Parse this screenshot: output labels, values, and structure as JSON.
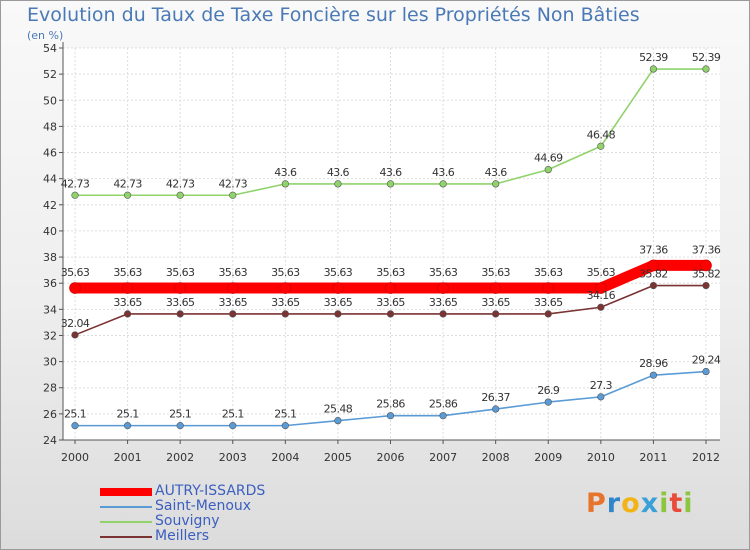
{
  "header": {
    "title": "Evolution du Taux de Taxe Foncière sur les Propriétés Non Bâties",
    "unit": "(en %)"
  },
  "logo": {
    "text": "Proxiti",
    "letter_colors": [
      "#e8732a",
      "#2f86c8",
      "#f2b317",
      "#3aa0d8",
      "#8cc63f",
      "#e84b3a",
      "#8cc63f"
    ]
  },
  "chart_data": {
    "type": "line",
    "title": "Evolution du Taux de Taxe Foncière sur les Propriétés Non Bâties",
    "ylabel": "(en %)",
    "ylim": [
      24,
      54
    ],
    "yticks": [
      24,
      26,
      28,
      30,
      32,
      34,
      36,
      38,
      40,
      42,
      44,
      46,
      48,
      50,
      52,
      54
    ],
    "x": [
      "2000",
      "2001",
      "2002",
      "2003",
      "2004",
      "2005",
      "2006",
      "2007",
      "2008",
      "2009",
      "2010",
      "2011",
      "2012"
    ],
    "grid": true,
    "legend_position": "bottom-left",
    "series": [
      {
        "name": "AUTRY-ISSARDS",
        "color": "#ff0000",
        "emphasis": true,
        "values": [
          35.63,
          35.63,
          35.63,
          35.63,
          35.63,
          35.63,
          35.63,
          35.63,
          35.63,
          35.63,
          35.63,
          37.36,
          37.36
        ],
        "labels": [
          "35.63",
          "35.63",
          "35.63",
          "35.63",
          "35.63",
          "35.63",
          "35.63",
          "35.63",
          "35.63",
          "35.63",
          "35.63",
          "37.36",
          "37.36"
        ]
      },
      {
        "name": "Saint-Menoux",
        "color": "#5b9bd5",
        "emphasis": false,
        "values": [
          25.1,
          25.1,
          25.1,
          25.1,
          25.1,
          25.48,
          25.86,
          25.86,
          26.37,
          26.9,
          27.3,
          28.96,
          29.24
        ],
        "labels": [
          "25.1",
          "25.1",
          "25.1",
          "25.1",
          "25.1",
          "25.48",
          "25.86",
          "25.86",
          "26.37",
          "26.9",
          "27.3",
          "28.96",
          "29.24"
        ]
      },
      {
        "name": "Souvigny",
        "color": "#8fd36a",
        "emphasis": false,
        "values": [
          42.73,
          42.73,
          42.73,
          42.73,
          43.6,
          43.6,
          43.6,
          43.6,
          43.6,
          44.69,
          46.48,
          52.39,
          52.39
        ],
        "labels": [
          "42.73",
          "42.73",
          "42.73",
          "42.73",
          "43.6",
          "43.6",
          "43.6",
          "43.6",
          "43.6",
          "44.69",
          "46.48",
          "52.39",
          "52.39"
        ]
      },
      {
        "name": "Meillers",
        "color": "#7b3333",
        "emphasis": false,
        "values": [
          32.04,
          33.65,
          33.65,
          33.65,
          33.65,
          33.65,
          33.65,
          33.65,
          33.65,
          33.65,
          34.16,
          35.82,
          35.82
        ],
        "labels": [
          "32.04",
          "33.65",
          "33.65",
          "33.65",
          "33.65",
          "33.65",
          "33.65",
          "33.65",
          "33.65",
          "33.65",
          "34.16",
          "35.82",
          "35.82"
        ]
      }
    ]
  }
}
